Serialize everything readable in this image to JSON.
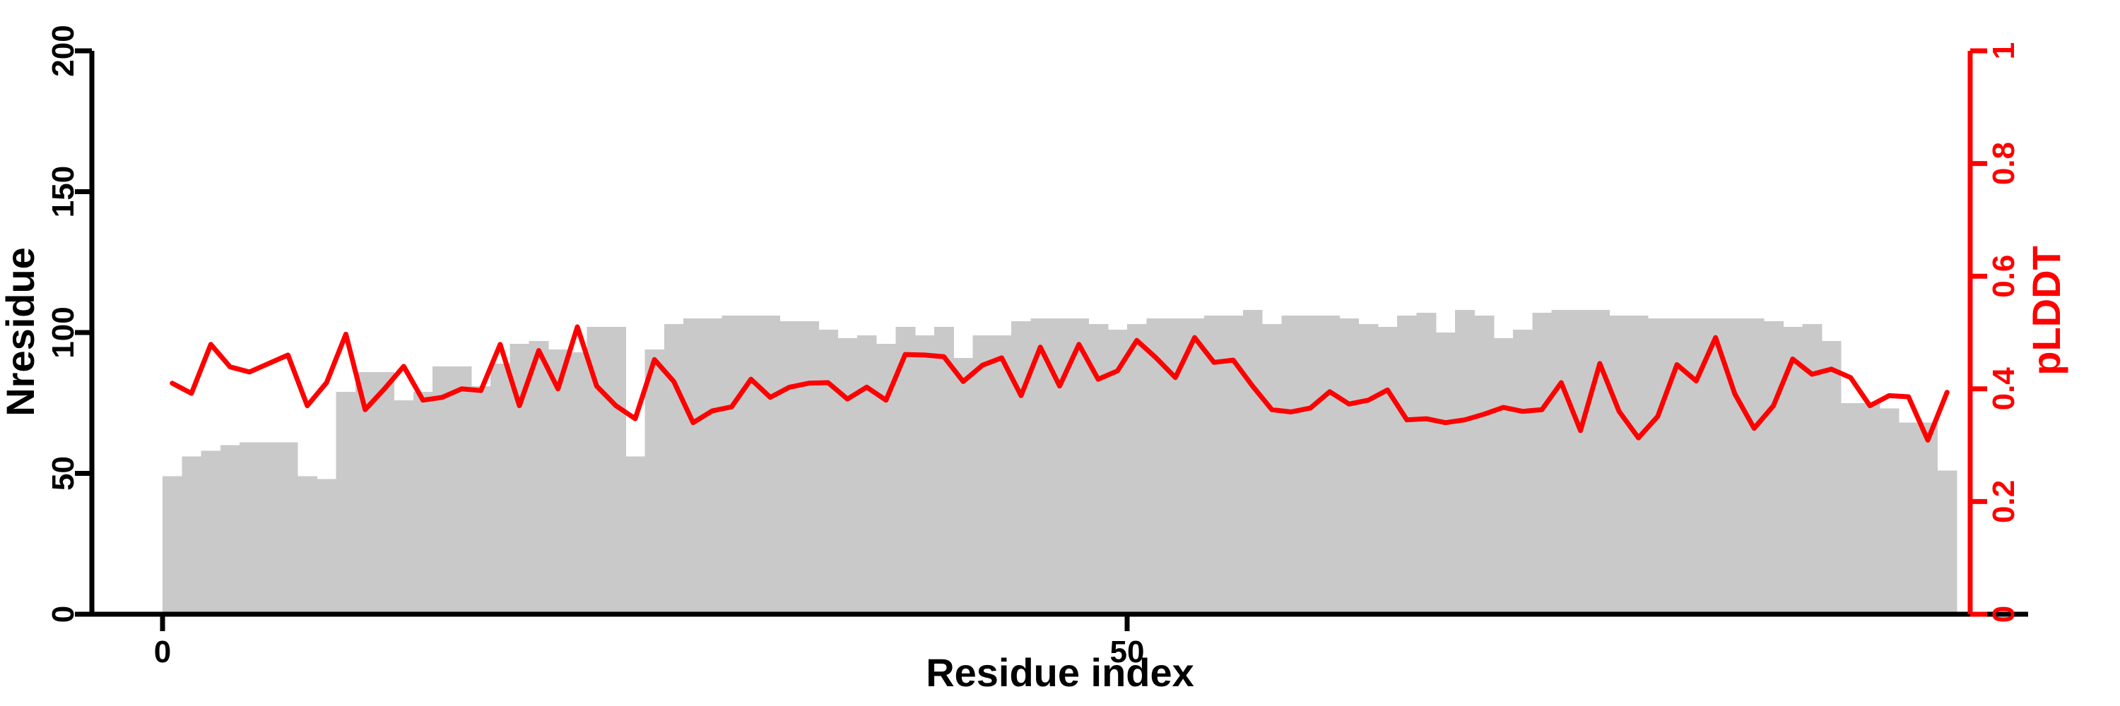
{
  "chart_data": {
    "type": "bar",
    "subtype": "histogram-with-line-overlay",
    "title": "",
    "xlabel": "Residue index",
    "ylabel_left": "Nresidue",
    "ylabel_right": "pLDDT",
    "x_tick_values": [
      0,
      50
    ],
    "x_tick_labels": [
      "0",
      "50"
    ],
    "left_tick_values": [
      0,
      50,
      100,
      150,
      200
    ],
    "left_tick_labels": [
      "0",
      "50",
      "100",
      "150",
      "200"
    ],
    "right_tick_values": [
      0,
      0.2,
      0.4,
      0.6,
      0.8,
      1
    ],
    "right_tick_labels": [
      "0",
      "0.2",
      "0.4",
      "0.6",
      "0.8",
      "1"
    ],
    "left_ylim": [
      0,
      200
    ],
    "right_ylim": [
      0,
      1
    ],
    "xlim": [
      0,
      93
    ],
    "n_residues": 93,
    "grid": false,
    "legend": "none",
    "categories_note": "x = residue index 1..93, bars contiguous histogram style",
    "series": [
      {
        "name": "Nresidue",
        "type": "bar",
        "axis": "left",
        "color": "#C9C9C9",
        "values": [
          49,
          56,
          58,
          60,
          61,
          61,
          61,
          49,
          48,
          79,
          86,
          86,
          76,
          79,
          88,
          88,
          81,
          89,
          96,
          97,
          94,
          93,
          102,
          102,
          56,
          94,
          103,
          105,
          105,
          106,
          106,
          106,
          104,
          104,
          101,
          98,
          99,
          96,
          102,
          99,
          102,
          91,
          99,
          99,
          104,
          105,
          105,
          105,
          103,
          101,
          103,
          105,
          105,
          105,
          106,
          106,
          108,
          103,
          106,
          106,
          106,
          105,
          103,
          102,
          106,
          107,
          100,
          108,
          106,
          98,
          101,
          107,
          108,
          108,
          108,
          106,
          106,
          105,
          105,
          105,
          105,
          105,
          105,
          104,
          102,
          103,
          97,
          75,
          75,
          73,
          68,
          68,
          51
        ]
      },
      {
        "name": "pLDDT",
        "type": "line",
        "axis": "right",
        "color": "#FF0000",
        "values": [
          0.41,
          0.392,
          0.479,
          0.439,
          0.43,
          0.445,
          0.46,
          0.37,
          0.411,
          0.497,
          0.363,
          0.4,
          0.44,
          0.38,
          0.385,
          0.4,
          0.397,
          0.479,
          0.37,
          0.468,
          0.4,
          0.51,
          0.405,
          0.37,
          0.347,
          0.452,
          0.413,
          0.34,
          0.361,
          0.368,
          0.417,
          0.385,
          0.403,
          0.41,
          0.411,
          0.382,
          0.403,
          0.38,
          0.461,
          0.46,
          0.457,
          0.413,
          0.442,
          0.455,
          0.388,
          0.474,
          0.405,
          0.479,
          0.417,
          0.432,
          0.486,
          0.455,
          0.42,
          0.491,
          0.447,
          0.451,
          0.405,
          0.363,
          0.359,
          0.366,
          0.395,
          0.373,
          0.38,
          0.398,
          0.345,
          0.347,
          0.34,
          0.345,
          0.355,
          0.367,
          0.36,
          0.363,
          0.411,
          0.326,
          0.445,
          0.36,
          0.313,
          0.351,
          0.443,
          0.414,
          0.491,
          0.391,
          0.33,
          0.37,
          0.453,
          0.426,
          0.435,
          0.42,
          0.37,
          0.388,
          0.386,
          0.309,
          0.394
        ]
      }
    ]
  },
  "colors": {
    "background": "#FFFFFF",
    "bar_fill": "#C9C9C9",
    "line_stroke": "#FF0000",
    "left_axis": "#000000",
    "bottom_axis": "#000000",
    "right_axis": "#FF0000"
  }
}
